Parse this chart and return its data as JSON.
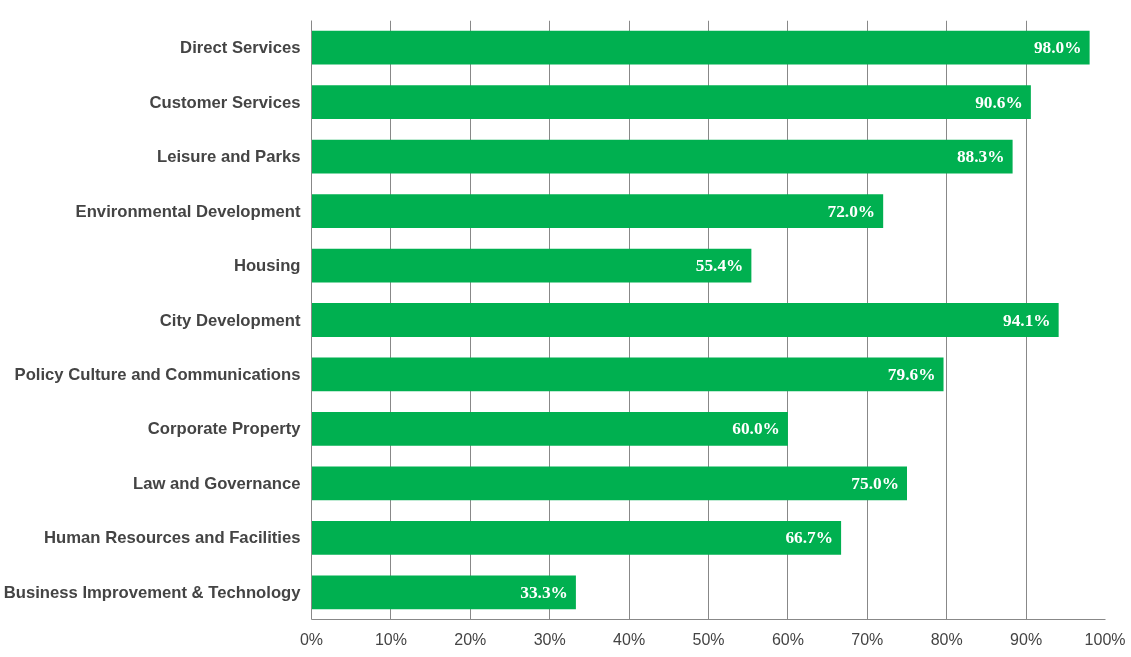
{
  "chart_data": {
    "type": "bar",
    "orientation": "horizontal",
    "categories": [
      "Direct Services",
      "Customer Services",
      "Leisure and Parks",
      "Environmental Development",
      "Housing",
      "City Development",
      "Policy Culture and Communications",
      "Corporate Property",
      "Law and Governance",
      "Human Resources and Facilities",
      "Business Improvement & Technology"
    ],
    "values": [
      98.0,
      90.6,
      88.3,
      72.0,
      55.4,
      94.1,
      79.6,
      60.0,
      75.0,
      66.7,
      33.3
    ],
    "value_labels": [
      "98.0%",
      "90.6%",
      "88.3%",
      "72.0%",
      "55.4%",
      "94.1%",
      "79.6%",
      "60.0%",
      "75.0%",
      "66.7%",
      "33.3%"
    ],
    "color": "#00b050",
    "xlim": [
      0,
      100
    ],
    "xticks": [
      {
        "value": 0,
        "label": "0%"
      },
      {
        "value": 10,
        "label": "10%"
      },
      {
        "value": 20,
        "label": "20%"
      },
      {
        "value": 30,
        "label": "30%"
      },
      {
        "value": 40,
        "label": "40%"
      },
      {
        "value": 50,
        "label": "50%"
      },
      {
        "value": 60,
        "label": "60%"
      },
      {
        "value": 70,
        "label": "70%"
      },
      {
        "value": 80,
        "label": "80%"
      },
      {
        "value": 90,
        "label": "90%"
      },
      {
        "value": 100,
        "label": "100%"
      }
    ],
    "grid": "x"
  }
}
